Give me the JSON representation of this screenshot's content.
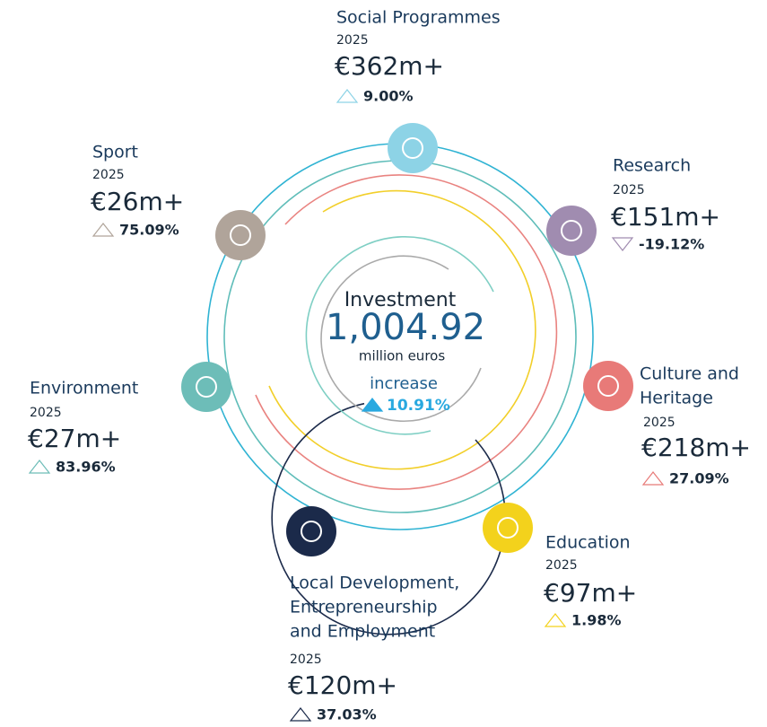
{
  "center": {
    "title": "Investment",
    "total": "1,004.92",
    "unit": "million euros",
    "change_label": "increase",
    "change": "10.91%"
  },
  "sectors": [
    {
      "name_lines": [
        "Social Programmes"
      ],
      "year": "2025",
      "amount": "€362m+",
      "change": "9.00%"
    },
    {
      "name_lines": [
        "Research"
      ],
      "year": "2025",
      "amount": "€151m+",
      "change": "-19.12%"
    },
    {
      "name_lines": [
        "Culture and",
        "Heritage"
      ],
      "year": "2025",
      "amount": "€218m+",
      "change": "27.09%"
    },
    {
      "name_lines": [
        "Education"
      ],
      "year": "2025",
      "amount": "€97m+",
      "change": "1.98%"
    },
    {
      "name_lines": [
        "Local Development,",
        "Entrepreneurship",
        "and Employment"
      ],
      "year": "2025",
      "amount": "€120m+",
      "change": "37.03%"
    },
    {
      "name_lines": [
        "Environment"
      ],
      "year": "2025",
      "amount": "€27m+",
      "change": "83.96%"
    },
    {
      "name_lines": [
        "Sport"
      ],
      "year": "2025",
      "amount": "€26m+",
      "change": "75.09%"
    }
  ]
}
